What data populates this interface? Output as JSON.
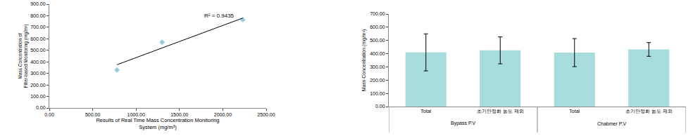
{
  "chart_data": [
    {
      "type": "scatter",
      "x_label": "Results of Real Time Mass Concentration Monitoring\nSystem (mg/m³)",
      "y_label": "Mass Concentration of\nFilter-based Monitoring (mg/m³)",
      "series": [
        {
          "type": "scatter",
          "marker": "diamond",
          "color": "#99ccdd",
          "x": [
            780,
            1300,
            2230
          ],
          "values": [
            330,
            570,
            765
          ]
        },
        {
          "type": "line",
          "line_style": "solid",
          "color": "#000000",
          "x": [
            780,
            2230
          ],
          "values": [
            375,
            780
          ]
        }
      ],
      "annotations": [
        "R² = 0.9435"
      ],
      "xlim": [
        0,
        2500
      ],
      "xticks": [
        {
          "value": 0,
          "label": "0.00"
        },
        {
          "value": 500,
          "label": "500.00"
        },
        {
          "value": 1000,
          "label": "1000.00"
        },
        {
          "value": 1500,
          "label": "1500.00"
        },
        {
          "value": 2000,
          "label": "2000.00"
        },
        {
          "value": 2500,
          "label": "2500.00"
        }
      ],
      "ylim": [
        0,
        900
      ],
      "yticks": [
        {
          "value": 0,
          "label": "0.00"
        },
        {
          "value": 100,
          "label": "100.00"
        },
        {
          "value": 200,
          "label": "200.00"
        },
        {
          "value": 300,
          "label": "300.00"
        },
        {
          "value": 400,
          "label": "400.00"
        },
        {
          "value": 500,
          "label": "500.00"
        },
        {
          "value": 600,
          "label": "600.00"
        },
        {
          "value": 700,
          "label": "700.00"
        },
        {
          "value": 800,
          "label": "800.00"
        },
        {
          "value": 900,
          "label": "900.00"
        }
      ],
      "grid": false
    },
    {
      "type": "bar",
      "y_label": "Mass Concentration (mg/m³)",
      "categories": [
        "Total",
        "초기안정화 농도 제외",
        "Total",
        "초기안정화 농도 제외"
      ],
      "group_labels": [
        "Bypass P.V",
        "Bypass P.V",
        "Chabmer P.V",
        "Chabmer P.V"
      ],
      "values": [
        410,
        425,
        408,
        432
      ],
      "errors": [
        140,
        102,
        106,
        52
      ],
      "color": "#a8dcdc",
      "ylim": [
        0,
        700
      ],
      "yticks": [
        {
          "value": 0,
          "label": "0.00"
        },
        {
          "value": 100,
          "label": "100.00"
        },
        {
          "value": 200,
          "label": "200.00"
        },
        {
          "value": 300,
          "label": "300.00"
        },
        {
          "value": 400,
          "label": "400.00"
        },
        {
          "value": 500,
          "label": "500.00"
        },
        {
          "value": 600,
          "label": "600.00"
        },
        {
          "value": 700,
          "label": "700.00"
        }
      ],
      "grid": false
    }
  ]
}
